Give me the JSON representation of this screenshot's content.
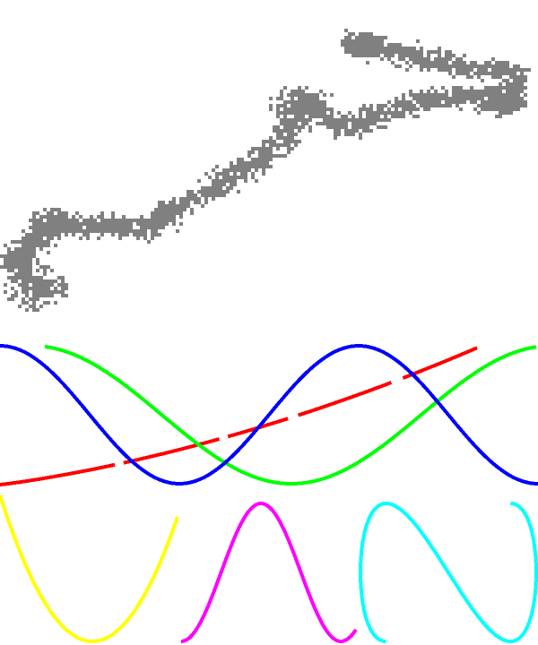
{
  "colors": {
    "background": "#ffffff",
    "walk": "#808080",
    "red": "#ff0000",
    "green": "#00ff00",
    "blue": "#0000ff",
    "yellow": "#ffff00",
    "magenta": "#ff00ff",
    "cyan": "#00ffff"
  },
  "icons": {
    "walk": "random-walk-path",
    "wave_red": "stepped-ramp-curve",
    "wave_green": "cosine-curve",
    "wave_blue": "cosine-curve",
    "loop_yellow": "parabola-curve",
    "loop_magenta": "sine-sweep-curve",
    "loop_cyan": "lissajous-curve"
  }
}
